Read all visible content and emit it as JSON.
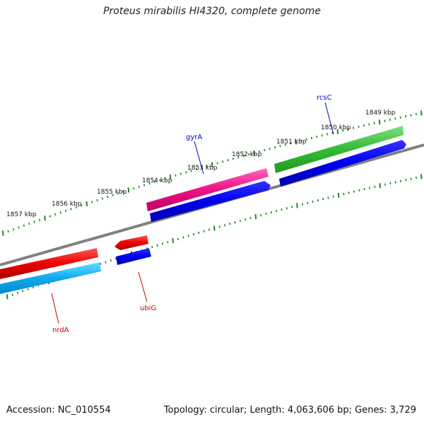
{
  "title": "Proteus mirabilis HI4320, complete genome",
  "footer": {
    "accession": "Accession: NC_010554",
    "summary": "Topology: circular; Length: 4,063,606 bp; Genes: 3,729"
  },
  "scale_labels": [
    "1849 kbp",
    "1850 kbp",
    "1851 kbp",
    "1852 kbp",
    "1853 kbp",
    "1854 kbp",
    "1855 kbp",
    "1856 kbp",
    "1857 kbp"
  ],
  "genes": [
    {
      "name": "rcsC",
      "color": "#0000cc"
    },
    {
      "name": "gyrA",
      "color": "#0000cc"
    },
    {
      "name": "ubiG",
      "color": "#cc0000"
    },
    {
      "name": "nrdA",
      "color": "#cc0000"
    }
  ],
  "feature_colors": {
    "green": "#33bb33",
    "blue": "#0000ee",
    "magenta": "#ee1188",
    "red": "#ee0000",
    "cyan": "#11aaee",
    "backbone": "#808080",
    "ticks": "#228822"
  }
}
